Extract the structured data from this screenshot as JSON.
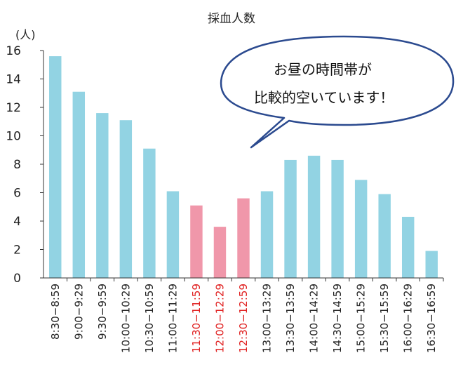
{
  "chart_data": {
    "type": "bar",
    "title": "採血人数",
    "ylabel": "(人)",
    "ylim": [
      0,
      16
    ],
    "yticks": [
      0,
      2,
      4,
      6,
      8,
      10,
      12,
      14,
      16
    ],
    "grid": false,
    "categories": [
      "8:30−8:59",
      "9:00−9:29",
      "9:30−9:59",
      "10:00−10:29",
      "10:30−10:59",
      "11:00−11:29",
      "11:30−11:59",
      "12:00−12:29",
      "12:30−12:59",
      "13:00−13:29",
      "13:30−13:59",
      "14:00−14:29",
      "14:30−14:59",
      "15:00−15:29",
      "15:30−15:59",
      "16:00−16:29",
      "16:30−16:59"
    ],
    "values": [
      15.6,
      13.1,
      11.6,
      11.1,
      9.1,
      6.1,
      5.1,
      3.6,
      5.6,
      6.1,
      8.3,
      8.6,
      8.3,
      6.9,
      5.9,
      4.3,
      1.9
    ],
    "highlighted": [
      false,
      false,
      false,
      false,
      false,
      false,
      true,
      true,
      true,
      false,
      false,
      false,
      false,
      false,
      false,
      false,
      false
    ],
    "colors": {
      "bar": "#92d3e3",
      "bar_highlight": "#f097aa",
      "label": "#222222",
      "label_highlight": "#e02020",
      "bubble_stroke": "#2b4a8f"
    },
    "annotation": {
      "lines": [
        "お昼の時間帯が",
        "比較的空いています！"
      ]
    }
  }
}
